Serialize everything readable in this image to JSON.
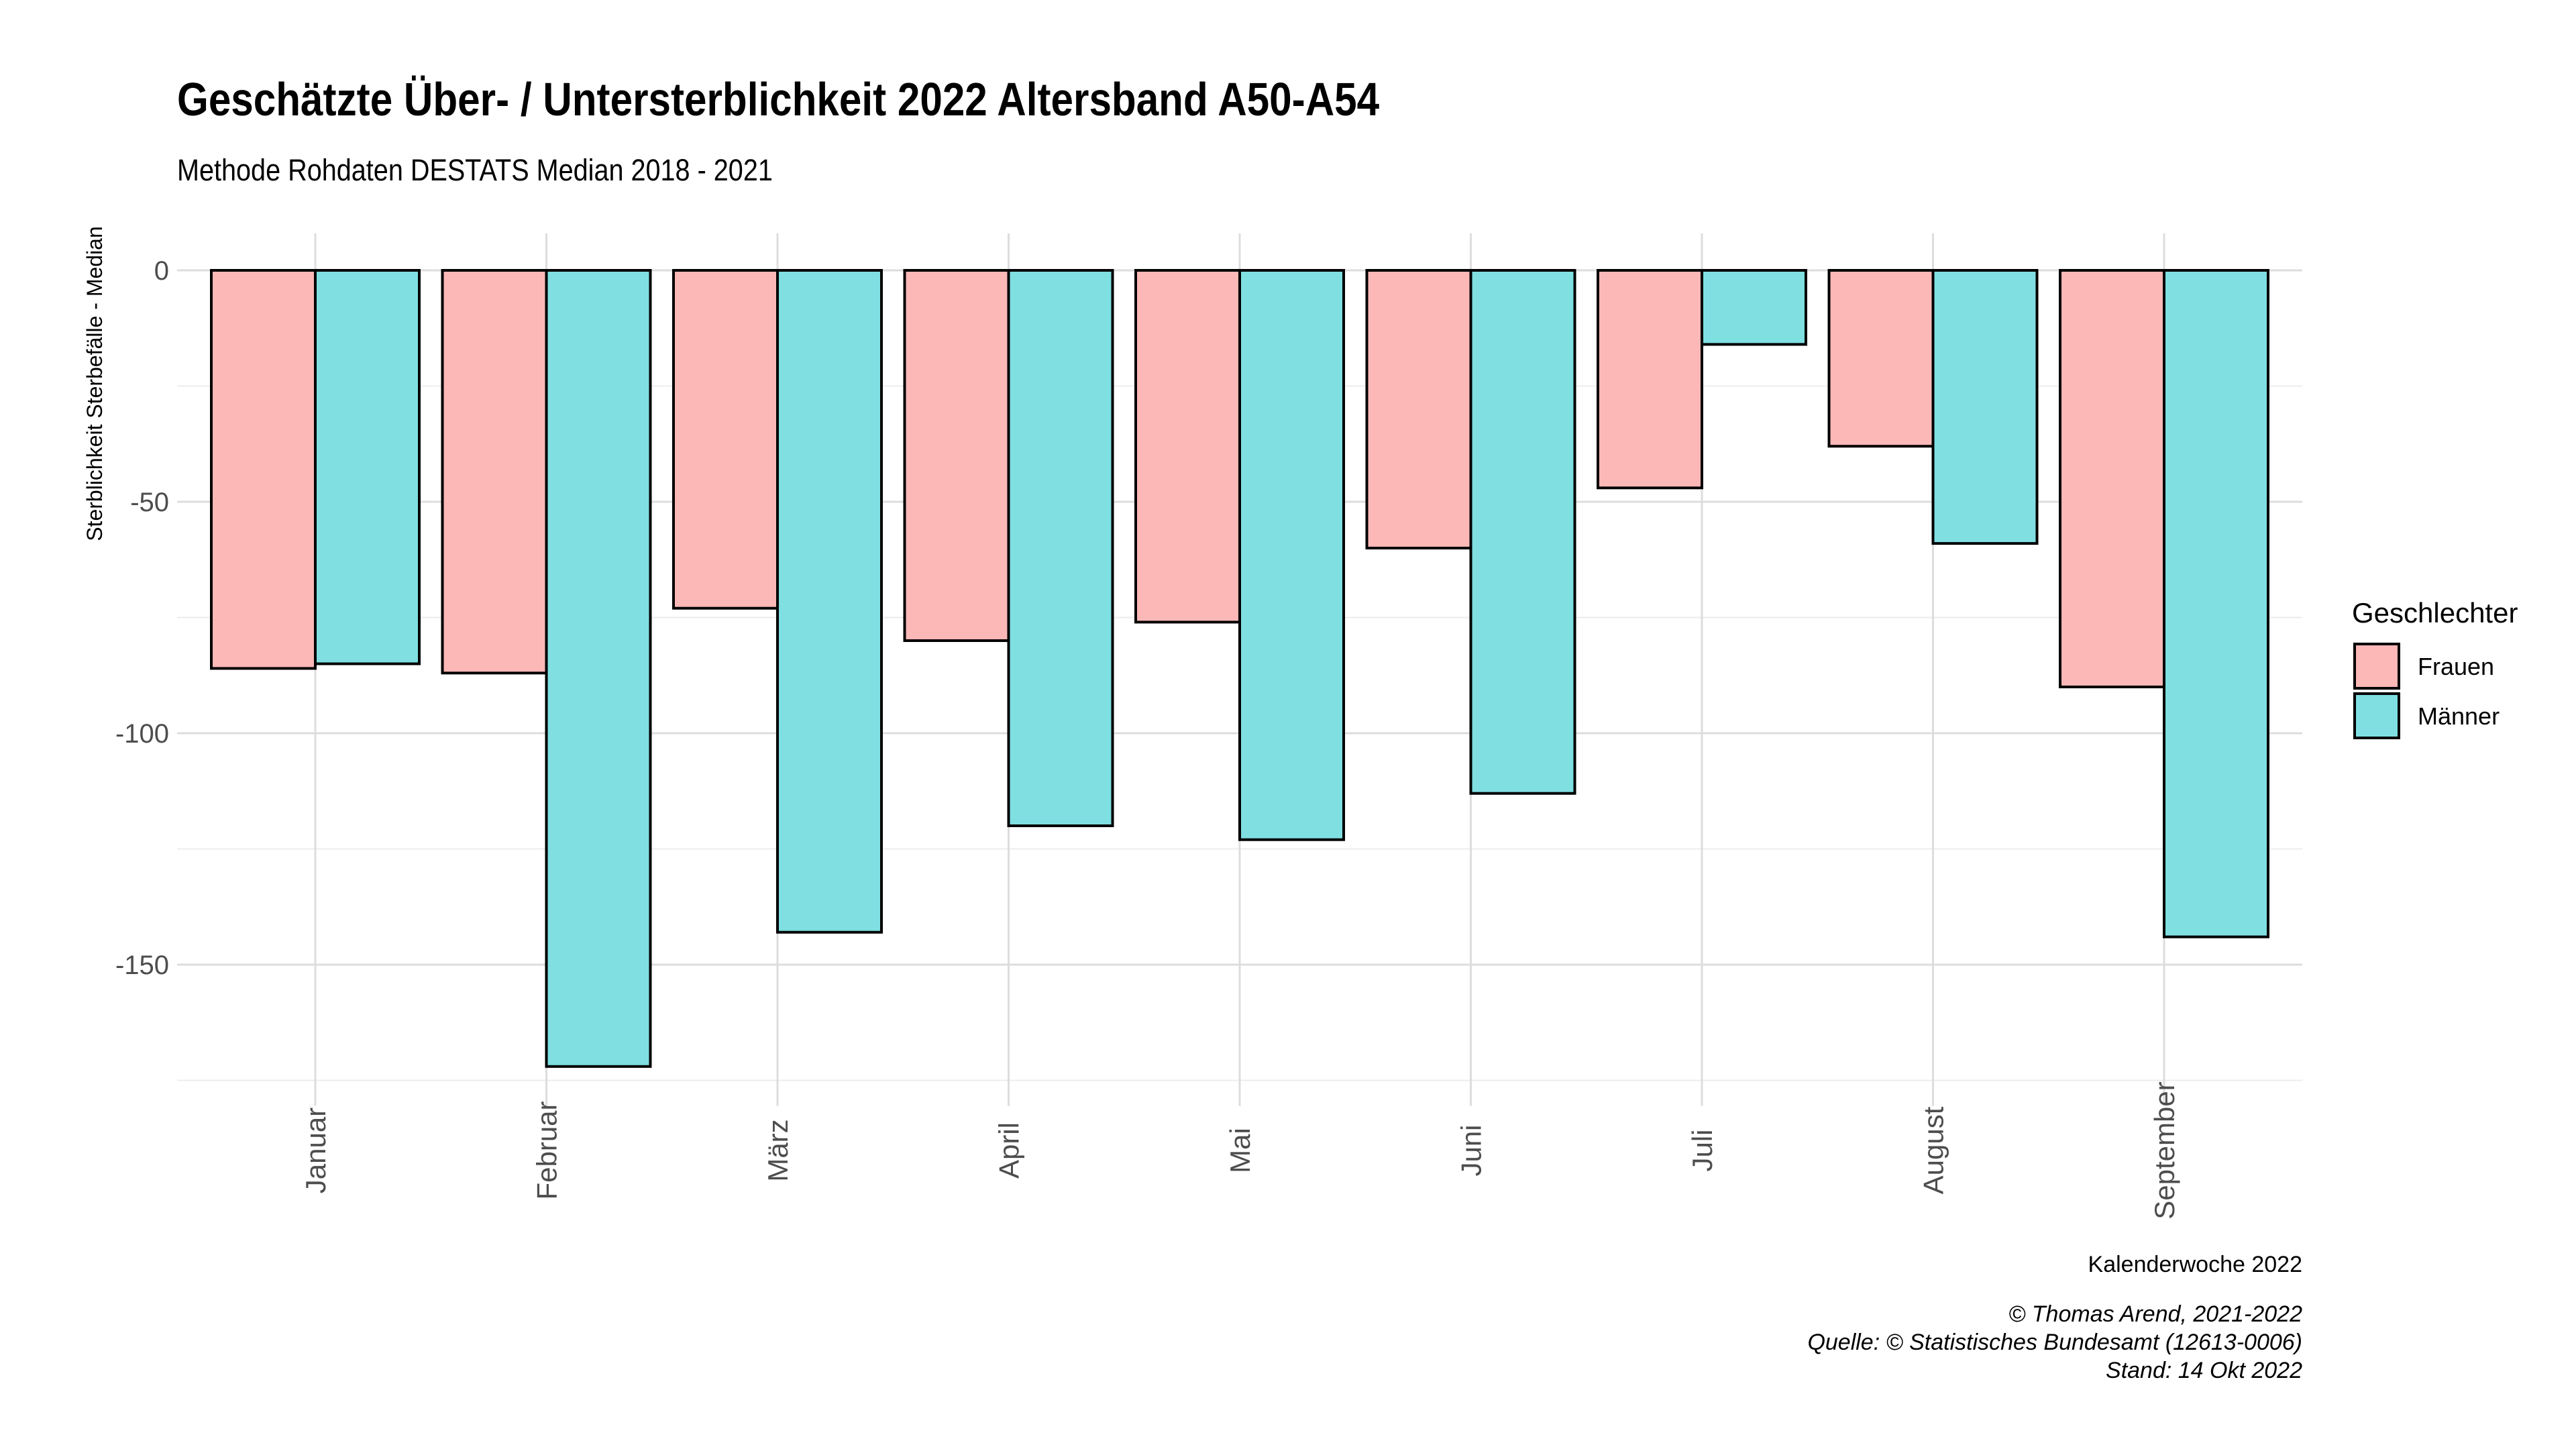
{
  "chart_data": {
    "type": "bar",
    "title": "Geschätzte Über- / Untersterblichkeit 2022 Altersband A50-A54",
    "subtitle": "Methode Rohdaten DESTATS Median 2018 - 2021",
    "xlabel": "Kalenderwoche 2022",
    "ylabel": "Sterblichkeit Sterbefälle - Median",
    "categories": [
      "Januar",
      "Februar",
      "März",
      "April",
      "Mai",
      "Juni",
      "Juli",
      "August",
      "September"
    ],
    "series": [
      {
        "name": "Frauen",
        "color": "#fbb8b7",
        "values": [
          -86,
          -87,
          -73,
          -80,
          -76,
          -60,
          -47,
          -38,
          -90
        ]
      },
      {
        "name": "Männer",
        "color": "#7fdfe1",
        "values": [
          -85,
          -172,
          -143,
          -120,
          -123,
          -113,
          -16,
          -59,
          -144
        ]
      }
    ],
    "yticks": [
      0,
      -50,
      -100,
      -150
    ],
    "ylim": [
      -175,
      0
    ],
    "grid": true,
    "legend": {
      "title": "Geschlechter",
      "position": "right"
    },
    "captions": [
      "© Thomas Arend, 2021-2022",
      "Quelle: © Statistisches Bundesamt (12613-0006)",
      "Stand: 14 Okt 2022"
    ]
  }
}
